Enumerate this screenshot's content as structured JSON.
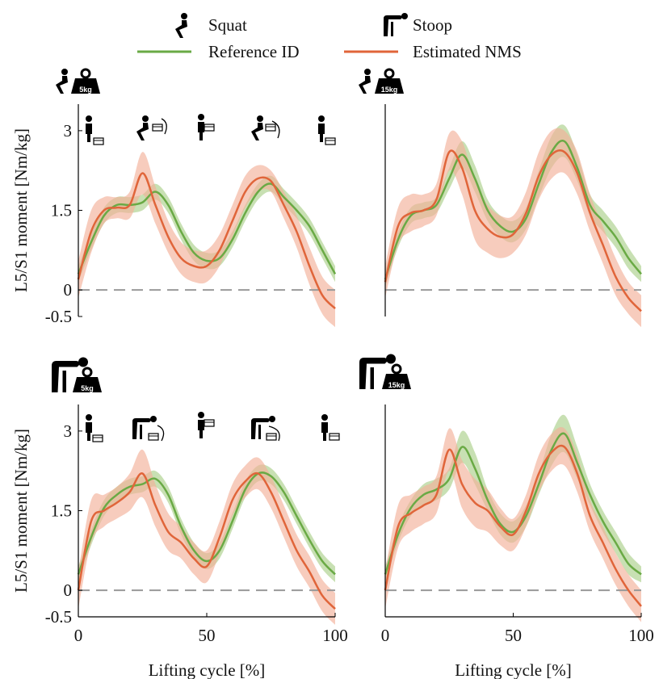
{
  "legend": {
    "squat_label": "Squat",
    "stoop_label": "Stoop",
    "reference_label": "Reference ID",
    "estimated_label": "Estimated NMS",
    "reference_color": "#6aaa45",
    "estimated_color": "#e0653a",
    "reference_band_color": "#b5d69a",
    "estimated_band_color": "#f2b199"
  },
  "chart_data": [
    {
      "type": "line",
      "id": "squat-5kg",
      "technique": "squat",
      "weight_label": "5kg",
      "xlabel": "",
      "ylabel": "L5/S1 moment [Nm/kg]",
      "xlim": [
        0,
        100
      ],
      "ylim": [
        -0.5,
        3.5
      ],
      "yticks": [
        -0.5,
        0,
        1.5,
        3
      ],
      "ytick_labels": [
        "-0.5",
        "0",
        "1.5",
        "3"
      ],
      "xticks": [],
      "xtick_labels": [],
      "zero_line": true,
      "phase_icons": true,
      "x": [
        0,
        5,
        10,
        15,
        20,
        25,
        30,
        35,
        40,
        45,
        50,
        55,
        60,
        65,
        70,
        75,
        80,
        85,
        90,
        95,
        100
      ],
      "series": [
        {
          "name": "Reference ID",
          "values": [
            0.3,
            0.9,
            1.4,
            1.6,
            1.6,
            1.65,
            1.85,
            1.6,
            1.1,
            0.7,
            0.55,
            0.6,
            0.95,
            1.45,
            1.85,
            2.0,
            1.75,
            1.5,
            1.2,
            0.75,
            0.3
          ],
          "band": [
            0.15,
            0.15,
            0.15,
            0.15,
            0.15,
            0.15,
            0.15,
            0.15,
            0.15,
            0.15,
            0.15,
            0.15,
            0.15,
            0.15,
            0.15,
            0.15,
            0.15,
            0.15,
            0.15,
            0.15,
            0.15
          ]
        },
        {
          "name": "Estimated NMS",
          "values": [
            0.2,
            1.1,
            1.5,
            1.55,
            1.6,
            2.2,
            1.6,
            1.0,
            0.6,
            0.45,
            0.45,
            0.75,
            1.3,
            1.85,
            2.1,
            2.05,
            1.6,
            1.1,
            0.45,
            -0.1,
            -0.35
          ],
          "band": [
            0.35,
            0.4,
            0.25,
            0.2,
            0.25,
            0.4,
            0.35,
            0.3,
            0.3,
            0.3,
            0.3,
            0.3,
            0.3,
            0.3,
            0.25,
            0.2,
            0.25,
            0.3,
            0.35,
            0.35,
            0.35
          ]
        }
      ]
    },
    {
      "type": "line",
      "id": "squat-15kg",
      "technique": "squat",
      "weight_label": "15kg",
      "xlabel": "",
      "ylabel": "",
      "xlim": [
        0,
        100
      ],
      "ylim": [
        -0.5,
        3.5
      ],
      "yticks": [],
      "ytick_labels": [],
      "xticks": [],
      "xtick_labels": [],
      "zero_line": true,
      "phase_icons": false,
      "x": [
        0,
        5,
        10,
        15,
        20,
        25,
        30,
        35,
        40,
        45,
        50,
        55,
        60,
        65,
        70,
        75,
        80,
        85,
        90,
        95,
        100
      ],
      "series": [
        {
          "name": "Reference ID",
          "values": [
            0.2,
            0.95,
            1.4,
            1.5,
            1.6,
            2.1,
            2.55,
            2.1,
            1.5,
            1.2,
            1.1,
            1.35,
            2.0,
            2.6,
            2.8,
            2.3,
            1.6,
            1.3,
            1.0,
            0.6,
            0.3
          ],
          "band": [
            0.15,
            0.15,
            0.15,
            0.15,
            0.15,
            0.2,
            0.25,
            0.25,
            0.2,
            0.2,
            0.2,
            0.2,
            0.25,
            0.3,
            0.3,
            0.25,
            0.2,
            0.2,
            0.2,
            0.2,
            0.15
          ]
        },
        {
          "name": "Estimated NMS",
          "values": [
            0.15,
            1.2,
            1.45,
            1.5,
            1.7,
            2.6,
            2.3,
            1.5,
            1.15,
            1.0,
            1.05,
            1.45,
            2.15,
            2.55,
            2.6,
            2.2,
            1.45,
            0.85,
            0.25,
            -0.15,
            -0.4
          ],
          "band": [
            0.3,
            0.35,
            0.35,
            0.3,
            0.3,
            0.35,
            0.5,
            0.55,
            0.45,
            0.4,
            0.35,
            0.4,
            0.45,
            0.45,
            0.4,
            0.4,
            0.35,
            0.35,
            0.35,
            0.3,
            0.3
          ]
        }
      ]
    },
    {
      "type": "line",
      "id": "stoop-5kg",
      "technique": "stoop",
      "weight_label": "5kg",
      "xlabel": "Lifting cycle [%]",
      "ylabel": "L5/S1 moment [Nm/kg]",
      "xlim": [
        0,
        100
      ],
      "ylim": [
        -0.5,
        3.5
      ],
      "yticks": [
        -0.5,
        0,
        1.5,
        3
      ],
      "ytick_labels": [
        "-0.5",
        "0",
        "1.5",
        "3"
      ],
      "xticks": [
        0,
        50,
        100
      ],
      "xtick_labels": [
        "0",
        "50",
        "100"
      ],
      "zero_line": true,
      "phase_icons": true,
      "x": [
        0,
        5,
        10,
        15,
        20,
        25,
        30,
        35,
        40,
        45,
        50,
        55,
        60,
        65,
        70,
        75,
        80,
        85,
        90,
        95,
        100
      ],
      "series": [
        {
          "name": "Reference ID",
          "values": [
            0.3,
            1.0,
            1.55,
            1.8,
            1.95,
            2.0,
            2.1,
            1.8,
            1.2,
            0.75,
            0.55,
            0.75,
            1.3,
            1.9,
            2.2,
            2.15,
            1.85,
            1.4,
            0.95,
            0.55,
            0.3
          ],
          "band": [
            0.15,
            0.15,
            0.15,
            0.15,
            0.15,
            0.15,
            0.15,
            0.15,
            0.15,
            0.15,
            0.15,
            0.15,
            0.15,
            0.15,
            0.15,
            0.15,
            0.15,
            0.15,
            0.15,
            0.15,
            0.15
          ]
        },
        {
          "name": "Estimated NMS",
          "values": [
            0.0,
            1.3,
            1.5,
            1.65,
            1.85,
            2.2,
            1.6,
            1.1,
            0.9,
            0.6,
            0.45,
            1.0,
            1.7,
            2.05,
            2.2,
            1.85,
            1.3,
            0.75,
            0.35,
            -0.1,
            -0.35
          ],
          "band": [
            0.35,
            0.4,
            0.3,
            0.3,
            0.35,
            0.45,
            0.4,
            0.35,
            0.3,
            0.3,
            0.3,
            0.3,
            0.3,
            0.3,
            0.3,
            0.3,
            0.3,
            0.3,
            0.3,
            0.3,
            0.3
          ]
        }
      ]
    },
    {
      "type": "line",
      "id": "stoop-15kg",
      "technique": "stoop",
      "weight_label": "15kg",
      "xlabel": "Lifting cycle [%]",
      "ylabel": "",
      "xlim": [
        0,
        100
      ],
      "ylim": [
        -0.5,
        3.5
      ],
      "yticks": [],
      "ytick_labels": [],
      "xticks": [
        0,
        50,
        100
      ],
      "xtick_labels": [
        "0",
        "50",
        "100"
      ],
      "zero_line": true,
      "phase_icons": false,
      "x": [
        0,
        5,
        10,
        15,
        20,
        25,
        30,
        35,
        40,
        45,
        50,
        55,
        60,
        65,
        70,
        75,
        80,
        85,
        90,
        95,
        100
      ],
      "series": [
        {
          "name": "Reference ID",
          "values": [
            0.3,
            1.05,
            1.55,
            1.8,
            1.9,
            2.1,
            2.7,
            2.3,
            1.7,
            1.25,
            1.1,
            1.4,
            2.0,
            2.65,
            2.95,
            2.4,
            1.8,
            1.3,
            0.9,
            0.5,
            0.3
          ],
          "band": [
            0.15,
            0.15,
            0.15,
            0.2,
            0.2,
            0.2,
            0.3,
            0.3,
            0.2,
            0.2,
            0.2,
            0.2,
            0.2,
            0.3,
            0.35,
            0.3,
            0.2,
            0.2,
            0.2,
            0.2,
            0.15
          ]
        },
        {
          "name": "Estimated NMS",
          "values": [
            0.0,
            1.2,
            1.45,
            1.6,
            1.8,
            2.65,
            2.0,
            1.65,
            1.5,
            1.2,
            1.05,
            1.5,
            2.2,
            2.6,
            2.7,
            2.2,
            1.4,
            0.9,
            0.4,
            0.0,
            -0.3
          ],
          "band": [
            0.35,
            0.4,
            0.35,
            0.35,
            0.35,
            0.4,
            0.45,
            0.45,
            0.4,
            0.35,
            0.3,
            0.3,
            0.35,
            0.35,
            0.35,
            0.35,
            0.3,
            0.3,
            0.3,
            0.3,
            0.3
          ]
        }
      ]
    }
  ]
}
